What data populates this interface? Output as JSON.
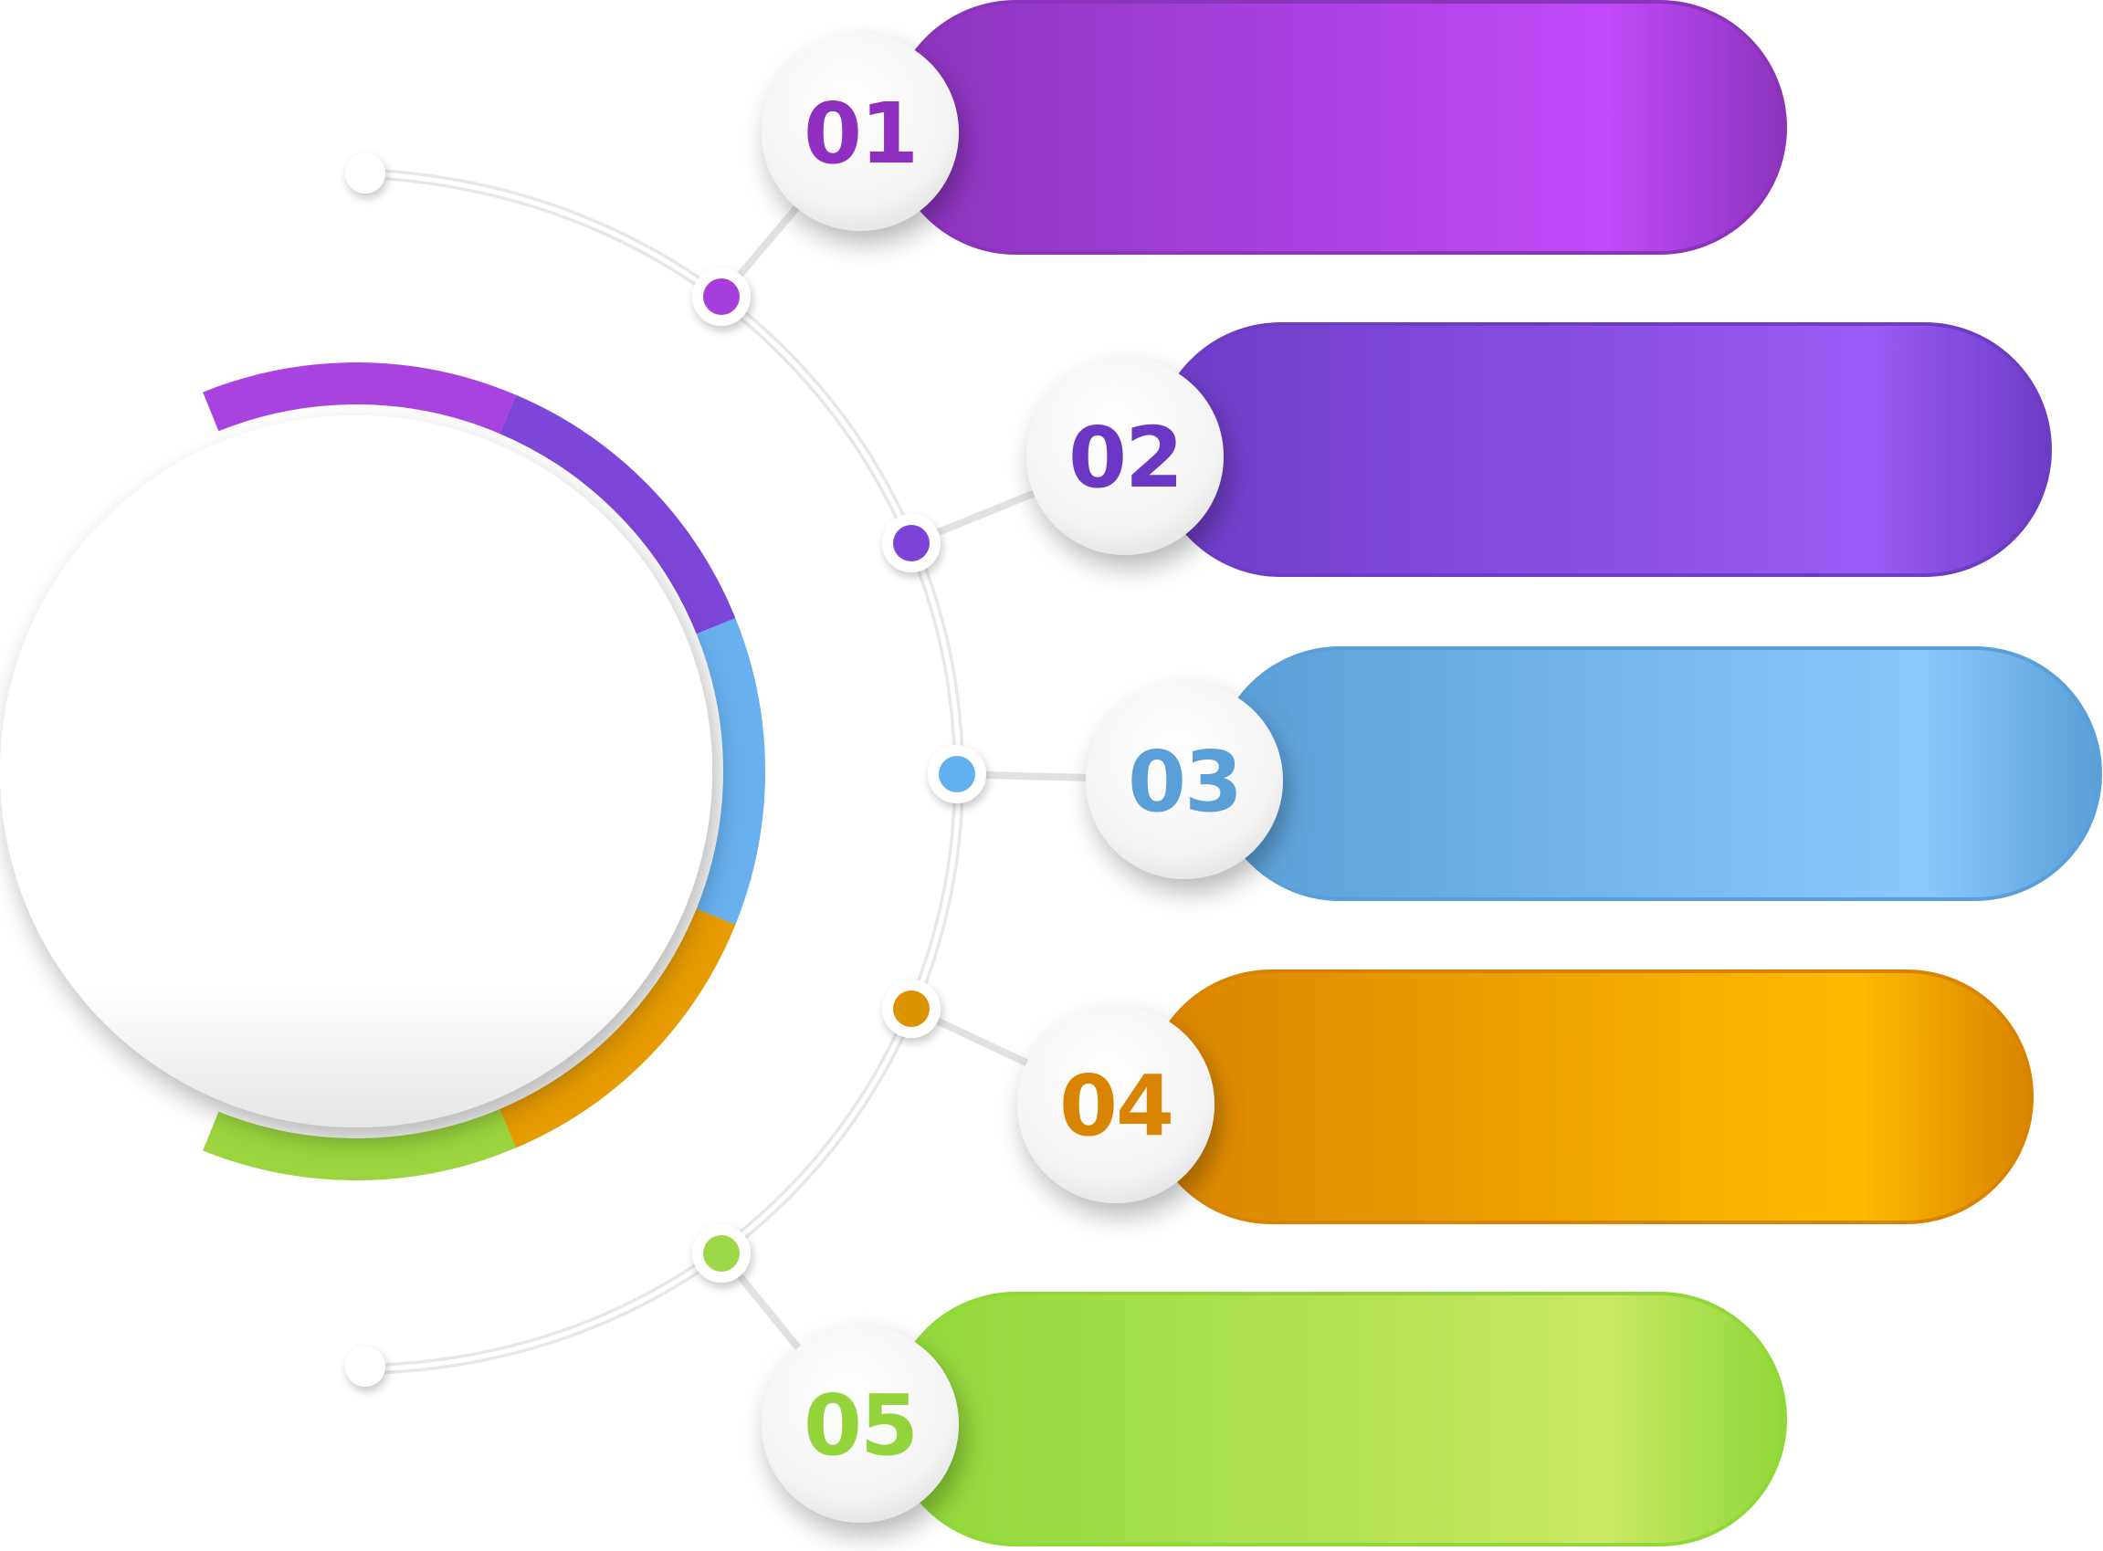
{
  "steps": [
    {
      "number": "01",
      "color": "#8e2fc0",
      "bar_from": "#8b33bb",
      "bar_to": "#c24bfb",
      "dot": "#a63fd9"
    },
    {
      "number": "02",
      "color": "#6a38c2",
      "bar_from": "#6c3cc4",
      "bar_to": "#9a5cf6",
      "dot": "#7b44d6"
    },
    {
      "number": "03",
      "color": "#5a9fd8",
      "bar_from": "#5a9fd8",
      "bar_to": "#8ac8fd",
      "dot": "#5fb1f0"
    },
    {
      "number": "04",
      "color": "#d88400",
      "bar_from": "#d88400",
      "bar_to": "#ffbb00",
      "dot": "#dc9300"
    },
    {
      "number": "05",
      "color": "#93d43a",
      "bar_from": "#8fd838",
      "bar_to": "#cbe866",
      "dot": "#9dd84a"
    }
  ],
  "ring_colors": [
    "#a843e0",
    "#7c46d8",
    "#68b0ee",
    "#e69c00",
    "#9bd43e"
  ]
}
